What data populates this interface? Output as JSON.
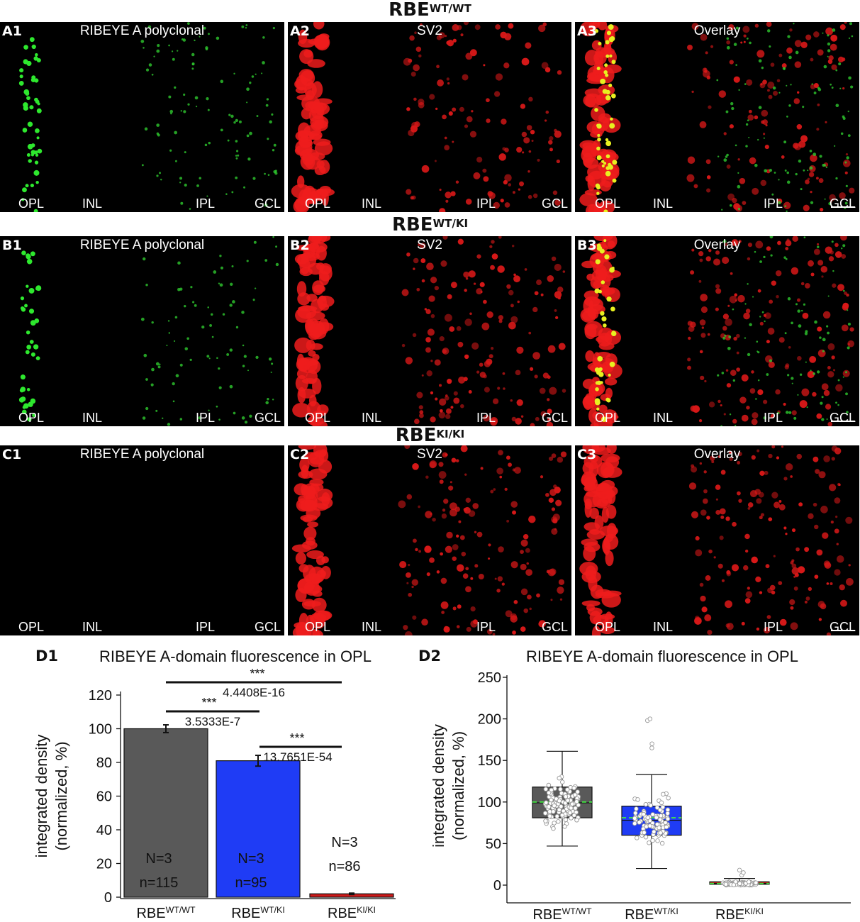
{
  "rows": [
    {
      "genotype_base": "RBE",
      "genotype_sup": "WT/WT",
      "panels": [
        {
          "label": "A1",
          "title": "RIBEYE A polyclonal",
          "layers": [
            "OPL",
            "INL",
            "IPL",
            "GCL"
          ]
        },
        {
          "label": "A2",
          "title": "SV2",
          "layers": [
            "OPL",
            "INL",
            "IPL",
            "GCL"
          ]
        },
        {
          "label": "A3",
          "title": "Overlay",
          "layers": [
            "OPL",
            "INL",
            "IPL",
            "GCL"
          ]
        }
      ]
    },
    {
      "genotype_base": "RBE",
      "genotype_sup": "WT/KI",
      "panels": [
        {
          "label": "B1",
          "title": "RIBEYE A polyclonal",
          "layers": [
            "OPL",
            "INL",
            "IPL",
            "GCL"
          ]
        },
        {
          "label": "B2",
          "title": "SV2",
          "layers": [
            "OPL",
            "INL",
            "IPL",
            "GCL"
          ]
        },
        {
          "label": "B3",
          "title": "Overlay",
          "layers": [
            "OPL",
            "INL",
            "IPL",
            "GCL"
          ]
        }
      ]
    },
    {
      "genotype_base": "RBE",
      "genotype_sup": "KI/KI",
      "panels": [
        {
          "label": "C1",
          "title": "RIBEYE A polyclonal",
          "layers": [
            "OPL",
            "INL",
            "IPL",
            "GCL"
          ]
        },
        {
          "label": "C2",
          "title": "SV2",
          "layers": [
            "OPL",
            "INL",
            "IPL",
            "GCL"
          ]
        },
        {
          "label": "C3",
          "title": "Overlay",
          "layers": [
            "OPL",
            "INL",
            "IPL",
            "GCL"
          ]
        }
      ]
    }
  ],
  "chart_data": [
    {
      "panel_label": "D1",
      "type": "bar",
      "title": "RIBEYE A-domain fluorescence in OPL",
      "ylabel": [
        "integrated density",
        "(normalized, %)"
      ],
      "ylim": [
        0,
        120
      ],
      "yticks": [
        0,
        20,
        40,
        60,
        80,
        100,
        120
      ],
      "categories": [
        {
          "base": "RBE",
          "sup": "WT/WT"
        },
        {
          "base": "RBE",
          "sup": "WT/KI"
        },
        {
          "base": "RBE",
          "sup": "KI/KI"
        }
      ],
      "values": [
        100,
        81,
        2
      ],
      "errors": [
        2.3,
        3.2,
        0.4
      ],
      "colors": [
        "#595959",
        "#1f3cf5",
        "#cc1a1a"
      ],
      "N_labels": [
        "N=3",
        "N=3",
        "N=3"
      ],
      "n_labels": [
        "n=115",
        "n=95",
        "n=86"
      ],
      "significance": [
        {
          "from": 0,
          "to": 2,
          "stars": "***",
          "p": "4.4408E-16"
        },
        {
          "from": 0,
          "to": 1,
          "stars": "***",
          "p": "3.5333E-7"
        },
        {
          "from": 1,
          "to": 2,
          "stars": "***",
          "p": "13.7651E-54"
        }
      ]
    },
    {
      "panel_label": "D2",
      "type": "box",
      "title": "RIBEYE A-domain fluorescence in OPL",
      "ylabel": [
        "integrated density",
        "(normalized, %)"
      ],
      "ylim": [
        0,
        250
      ],
      "yticks": [
        0,
        50,
        100,
        150,
        200,
        250
      ],
      "categories": [
        {
          "base": "RBE",
          "sup": "WT/WT"
        },
        {
          "base": "RBE",
          "sup": "WT/KI"
        },
        {
          "base": "RBE",
          "sup": "KI/KI"
        }
      ],
      "colors": [
        "#595959",
        "#1f3cf5",
        "#cc1a1a"
      ],
      "boxes": [
        {
          "whisker_low": 47,
          "q1": 81,
          "median": 99,
          "mean": 100,
          "q3": 118,
          "whisker_high": 161,
          "n": 115,
          "outliers": []
        },
        {
          "whisker_low": 20,
          "q1": 60,
          "median": 78,
          "mean": 81,
          "q3": 95,
          "whisker_high": 133,
          "n": 95,
          "outliers": [
            165,
            170,
            198,
            200
          ]
        },
        {
          "whisker_low": 0,
          "q1": 1,
          "median": 2,
          "mean": 2,
          "q3": 4,
          "whisker_high": 8,
          "n": 86,
          "outliers": [
            12,
            15,
            18
          ]
        }
      ]
    }
  ]
}
